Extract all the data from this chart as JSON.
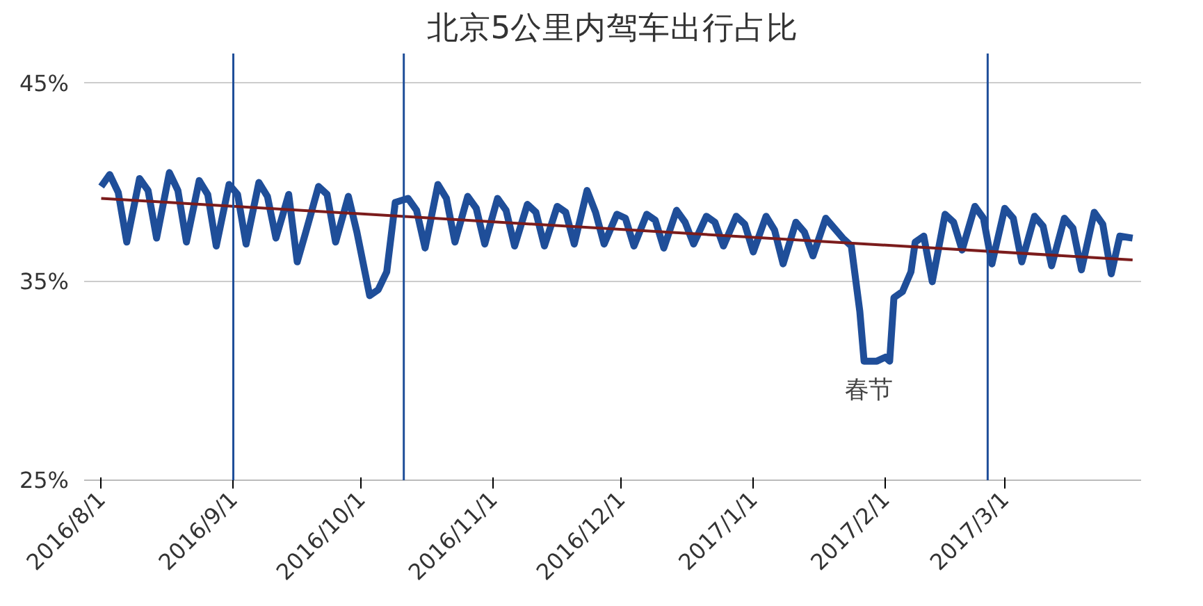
{
  "chart_data": {
    "type": "line",
    "title": "北京5公里内驾车出行占比",
    "xlim": [
      "2016-07-28",
      "2017-04-02"
    ],
    "xticks": [
      {
        "value": "2016-08-01",
        "label": "2016/8/1"
      },
      {
        "value": "2016-09-01",
        "label": "2016/9/1"
      },
      {
        "value": "2016-10-01",
        "label": "2016/10/1"
      },
      {
        "value": "2016-11-01",
        "label": "2016/11/1"
      },
      {
        "value": "2016-12-01",
        "label": "2016/12/1"
      },
      {
        "value": "2017-01-01",
        "label": "2017/1/1"
      },
      {
        "value": "2017-02-01",
        "label": "2017/2/1"
      },
      {
        "value": "2017-03-01",
        "label": "2017/3/1"
      }
    ],
    "ylim": [
      25,
      46.5
    ],
    "yticks": [
      {
        "value": 25,
        "label": "25%"
      },
      {
        "value": 35,
        "label": "35%"
      },
      {
        "value": 45,
        "label": "45%"
      }
    ],
    "grid": "y",
    "line_style": "solid",
    "marker": "none",
    "series": [
      {
        "color": "#1f4e99",
        "x": [
          "2016-08-01",
          "2016-08-03",
          "2016-08-05",
          "2016-08-07",
          "2016-08-10",
          "2016-08-12",
          "2016-08-14",
          "2016-08-17",
          "2016-08-19",
          "2016-08-21",
          "2016-08-24",
          "2016-08-26",
          "2016-08-28",
          "2016-08-31",
          "2016-09-02",
          "2016-09-04",
          "2016-09-07",
          "2016-09-09",
          "2016-09-11",
          "2016-09-14",
          "2016-09-16",
          "2016-09-18",
          "2016-09-21",
          "2016-09-23",
          "2016-09-25",
          "2016-09-28",
          "2016-09-30",
          "2016-10-03",
          "2016-10-05",
          "2016-10-07",
          "2016-10-09",
          "2016-10-12",
          "2016-10-14",
          "2016-10-16",
          "2016-10-19",
          "2016-10-21",
          "2016-10-23",
          "2016-10-26",
          "2016-10-28",
          "2016-10-30",
          "2016-11-02",
          "2016-11-04",
          "2016-11-06",
          "2016-11-09",
          "2016-11-11",
          "2016-11-13",
          "2016-11-16",
          "2016-11-18",
          "2016-11-20",
          "2016-11-23",
          "2016-11-25",
          "2016-11-27",
          "2016-11-30",
          "2016-12-02",
          "2016-12-04",
          "2016-12-07",
          "2016-12-09",
          "2016-12-11",
          "2016-12-14",
          "2016-12-16",
          "2016-12-18",
          "2016-12-21",
          "2016-12-23",
          "2016-12-25",
          "2016-12-28",
          "2016-12-30",
          "2017-01-01",
          "2017-01-04",
          "2017-01-06",
          "2017-01-08",
          "2017-01-11",
          "2017-01-13",
          "2017-01-15",
          "2017-01-18",
          "2017-01-20",
          "2017-01-22",
          "2017-01-24",
          "2017-01-26",
          "2017-01-27",
          "2017-01-30",
          "2017-02-01",
          "2017-02-02",
          "2017-02-03",
          "2017-02-05",
          "2017-02-07",
          "2017-02-08",
          "2017-02-10",
          "2017-02-12",
          "2017-02-15",
          "2017-02-17",
          "2017-02-19",
          "2017-02-22",
          "2017-02-24",
          "2017-02-26",
          "2017-03-01",
          "2017-03-03",
          "2017-03-05",
          "2017-03-08",
          "2017-03-10",
          "2017-03-12",
          "2017-03-15",
          "2017-03-17",
          "2017-03-19",
          "2017-03-22",
          "2017-03-24",
          "2017-03-26",
          "2017-03-28",
          "2017-03-31"
        ],
        "values": [
          39.8,
          40.4,
          39.5,
          37.0,
          40.2,
          39.6,
          37.2,
          40.5,
          39.6,
          37.0,
          40.1,
          39.4,
          36.8,
          39.9,
          39.4,
          36.9,
          40.0,
          39.3,
          37.2,
          39.4,
          36.0,
          37.5,
          39.8,
          39.4,
          37.0,
          39.3,
          37.5,
          34.3,
          34.6,
          35.5,
          39.0,
          39.2,
          38.6,
          36.7,
          39.9,
          39.2,
          37.0,
          39.3,
          38.7,
          36.9,
          39.2,
          38.6,
          36.8,
          38.9,
          38.5,
          36.8,
          38.8,
          38.5,
          36.9,
          39.6,
          38.5,
          36.9,
          38.4,
          38.2,
          36.8,
          38.4,
          38.1,
          36.7,
          38.6,
          38.0,
          36.9,
          38.3,
          38.0,
          36.8,
          38.3,
          37.9,
          36.5,
          38.3,
          37.6,
          35.9,
          38.0,
          37.5,
          36.3,
          38.2,
          37.7,
          37.2,
          36.8,
          33.5,
          31.0,
          31.0,
          31.2,
          31.0,
          34.2,
          34.5,
          35.5,
          37.0,
          37.3,
          35.0,
          38.4,
          38.0,
          36.6,
          38.8,
          38.2,
          35.9,
          38.7,
          38.2,
          36.0,
          38.3,
          37.8,
          35.8,
          38.2,
          37.7,
          35.6,
          38.5,
          37.9,
          35.4,
          37.3,
          37.2
        ]
      },
      {
        "color": "#7b1c1c",
        "x": [
          "2016-08-01",
          "2017-03-31"
        ],
        "values": [
          39.2,
          36.1
        ]
      }
    ],
    "ref_lines": [
      {
        "axis": "x",
        "value": "2016-09-01",
        "color": "#1f4e99"
      },
      {
        "axis": "x",
        "value": "2016-10-11",
        "color": "#1f4e99"
      },
      {
        "axis": "x",
        "value": "2017-02-25",
        "color": "#1f4e99"
      }
    ],
    "annotations": [
      {
        "text": "春节",
        "x": "2017-01-28",
        "y": 29.5
      }
    ]
  }
}
